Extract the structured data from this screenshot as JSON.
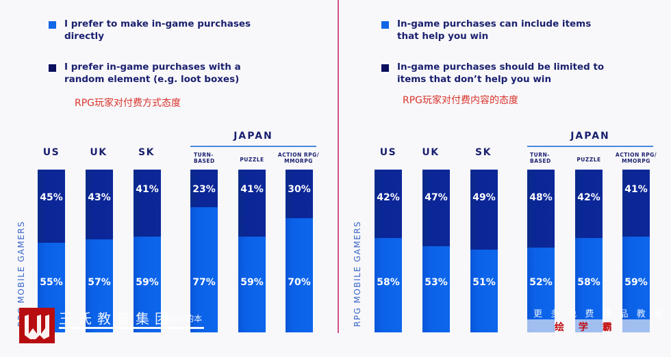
{
  "colors": {
    "direct": "#0b62e8",
    "random": "#0a1f7a",
    "note": "#d8322a",
    "divider": "#d0508a"
  },
  "left": {
    "legend": [
      {
        "label": "I prefer to make in-game purchases directly",
        "swatch": "#1166e6"
      },
      {
        "label": "I prefer in-game purchases with a random element (e.g. loot boxes)",
        "swatch": "#0a0f5e"
      }
    ],
    "note": "RPG玩家对付费方式态度",
    "ylabel": "RPG MOBILE GAMERS",
    "japan_label": "JAPAN",
    "countries": [
      "US",
      "UK",
      "SK"
    ],
    "genres": [
      "TURN-\nBASED",
      "PUZZLE",
      "ACTION RPG/\nMMORPG"
    ]
  },
  "right": {
    "legend": [
      {
        "label": "In-game purchases can include items that help you win",
        "swatch": "#1166e6"
      },
      {
        "label": "In-game purchases should be limited to items that don’t help you win",
        "swatch": "#0a0f5e"
      }
    ],
    "note": "RPG玩家对付费内容的态度",
    "ylabel": "RPG MOBILE GAMERS",
    "japan_label": "JAPAN",
    "countries": [
      "US",
      "UK",
      "SK"
    ],
    "genres": [
      "TURN-\nBASED",
      "PUZZLE",
      "ACTION RPG/\nMMORPG"
    ]
  },
  "chart_data": [
    {
      "type": "bar",
      "stacked": true,
      "title": "RPG玩家对付费方式态度",
      "ylabel": "RPG MOBILE GAMERS",
      "categories": [
        "US",
        "UK",
        "SK",
        "JAPAN TURN-BASED",
        "JAPAN PUZZLE",
        "JAPAN ACTION RPG/MMORPG"
      ],
      "series": [
        {
          "name": "I prefer to make in-game purchases directly",
          "values": [
            55,
            57,
            59,
            77,
            59,
            70
          ]
        },
        {
          "name": "I prefer in-game purchases with a random element (e.g. loot boxes)",
          "values": [
            45,
            43,
            41,
            23,
            41,
            30
          ]
        }
      ],
      "ylim": [
        0,
        100
      ],
      "legend": "top-left"
    },
    {
      "type": "bar",
      "stacked": true,
      "title": "RPG玩家对付费内容的态度",
      "ylabel": "RPG MOBILE GAMERS",
      "categories": [
        "US",
        "UK",
        "SK",
        "JAPAN TURN-BASED",
        "JAPAN PUZZLE",
        "JAPAN ACTION RPG/MMORPG"
      ],
      "series": [
        {
          "name": "In-game purchases can include items that help you win",
          "values": [
            58,
            53,
            51,
            52,
            58,
            59
          ]
        },
        {
          "name": "In-game purchases should be limited to items that don’t help you win",
          "values": [
            42,
            47,
            49,
            48,
            42,
            41
          ]
        }
      ],
      "ylim": [
        0,
        100
      ],
      "legend": "top-left"
    }
  ],
  "watermark": {
    "left_text": "王氏教育集团",
    "left_small": "WLW 的本",
    "right_text": "更 多 免 费 精 品 教 程",
    "right_red": "绘 学 霸"
  }
}
